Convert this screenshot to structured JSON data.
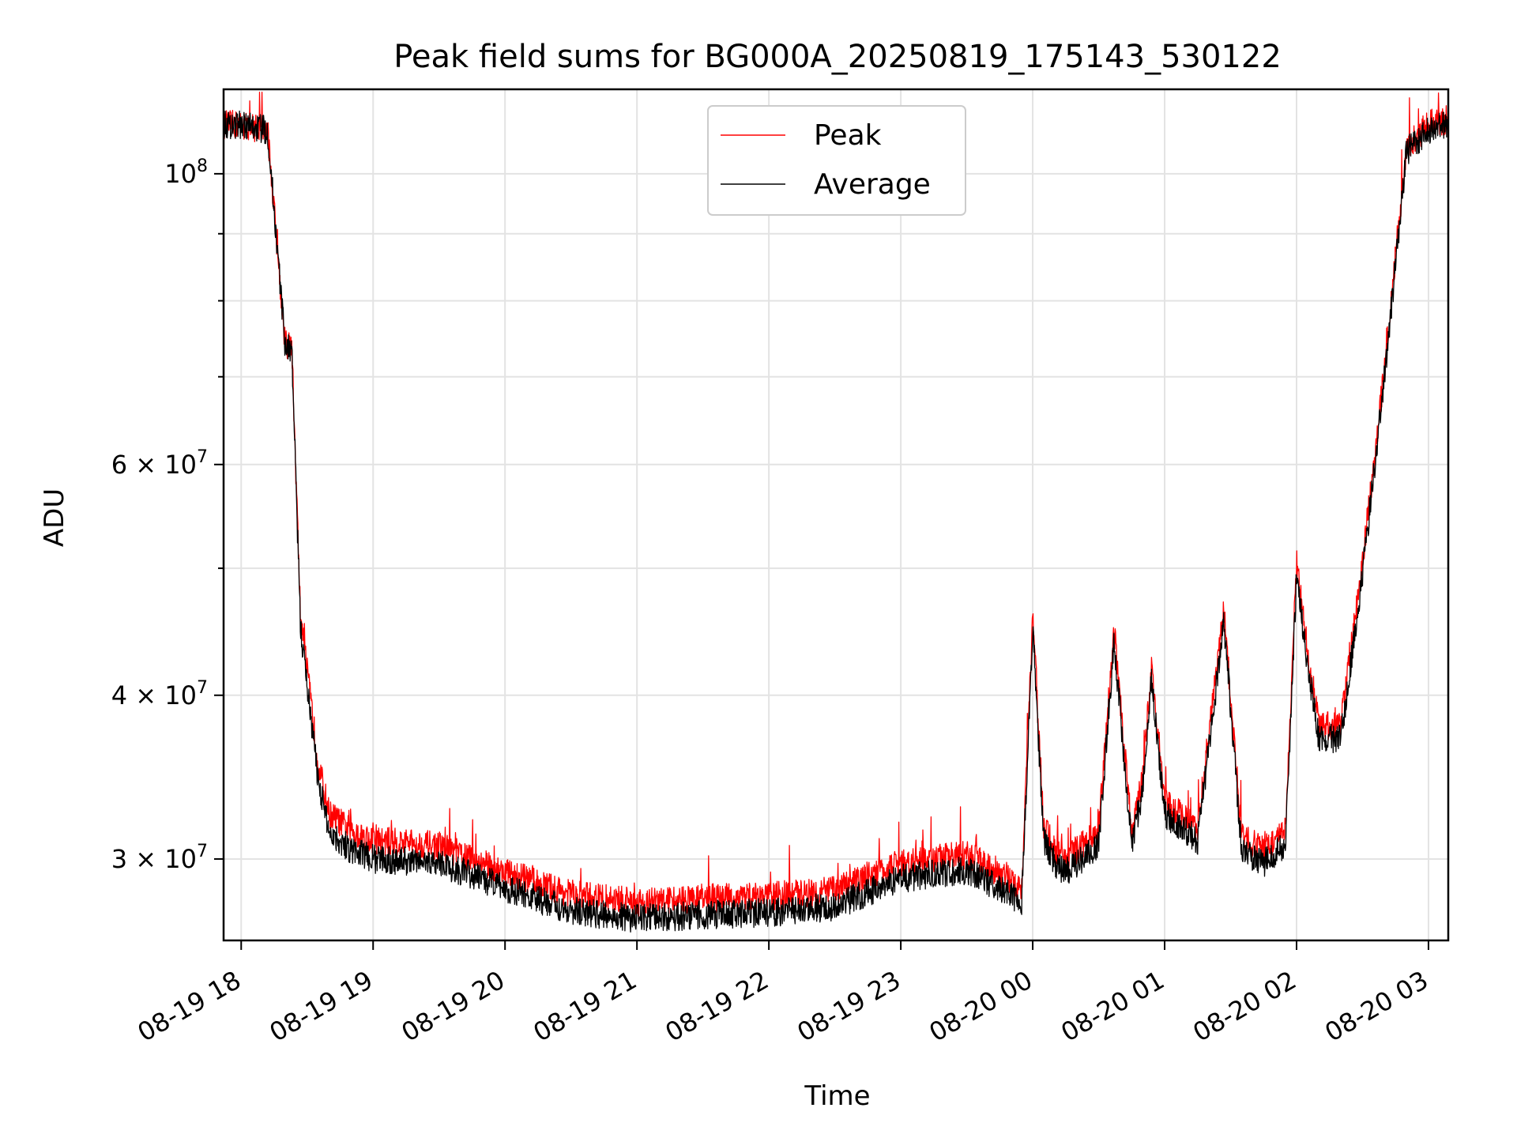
{
  "chart_data": {
    "type": "line",
    "title": "Peak field sums for BG000A_20250819_175143_530122",
    "xlabel": "Time",
    "ylabel": "ADU",
    "yscale": "log",
    "grid": true,
    "legend_position": "top-center",
    "x_tick_labels": [
      "08-19 18",
      "08-19 19",
      "08-19 20",
      "08-19 21",
      "08-19 22",
      "08-19 23",
      "08-20 00",
      "08-20 01",
      "08-20 02",
      "08-20 03"
    ],
    "x_ticks": [
      "2025-08-19T18:00",
      "2025-08-19T19:00",
      "2025-08-19T20:00",
      "2025-08-19T21:00",
      "2025-08-19T22:00",
      "2025-08-19T23:00",
      "2025-08-20T00:00",
      "2025-08-20T01:00",
      "2025-08-20T02:00",
      "2025-08-20T03:00"
    ],
    "xlim": [
      "2025-08-19T17:52",
      "2025-08-20T03:09"
    ],
    "ylim": [
      26000000,
      116000000
    ],
    "y_ticks": [
      {
        "value": 30000000,
        "mantissa": "3",
        "exponent": "7"
      },
      {
        "value": 40000000,
        "mantissa": "4",
        "exponent": "7"
      },
      {
        "value": 60000000,
        "mantissa": "6",
        "exponent": "7"
      },
      {
        "value": 100000000,
        "mantissa": "",
        "exponent": "8"
      }
    ],
    "y_minor_ticks": [
      50000000,
      70000000,
      80000000,
      90000000
    ],
    "series": [
      {
        "name": "Peak",
        "color": "#ff0000",
        "x": [
          "2025-08-19T17:52",
          "2025-08-19T18:00",
          "2025-08-19T18:12",
          "2025-08-19T18:20",
          "2025-08-19T18:23",
          "2025-08-19T18:27",
          "2025-08-19T18:35",
          "2025-08-19T18:40",
          "2025-08-19T18:50",
          "2025-08-19T19:00",
          "2025-08-19T19:30",
          "2025-08-19T20:00",
          "2025-08-19T20:30",
          "2025-08-19T21:00",
          "2025-08-19T21:30",
          "2025-08-19T22:00",
          "2025-08-19T22:30",
          "2025-08-19T23:00",
          "2025-08-19T23:30",
          "2025-08-19T23:45",
          "2025-08-19T23:55",
          "2025-08-20T00:00",
          "2025-08-20T00:05",
          "2025-08-20T00:10",
          "2025-08-20T00:15",
          "2025-08-20T00:30",
          "2025-08-20T00:37",
          "2025-08-20T00:45",
          "2025-08-20T00:50",
          "2025-08-20T00:54",
          "2025-08-20T01:00",
          "2025-08-20T01:15",
          "2025-08-20T01:27",
          "2025-08-20T01:35",
          "2025-08-20T01:45",
          "2025-08-20T01:55",
          "2025-08-20T02:00",
          "2025-08-20T02:04",
          "2025-08-20T02:10",
          "2025-08-20T02:20",
          "2025-08-20T02:30",
          "2025-08-20T02:40",
          "2025-08-20T02:50",
          "2025-08-20T03:00",
          "2025-08-20T03:09"
        ],
        "values": [
          109000000,
          109000000,
          108000000,
          74000000,
          74000000,
          46000000,
          35500000,
          32500000,
          31500000,
          31000000,
          30700000,
          29300000,
          28200000,
          27800000,
          28000000,
          28100000,
          28400000,
          29800000,
          30200000,
          29300000,
          28600000,
          46000000,
          31800000,
          30500000,
          30000000,
          31500000,
          45000000,
          31500000,
          34500000,
          42000000,
          33200000,
          31700000,
          46500000,
          31200000,
          30500000,
          31500000,
          50500000,
          44500000,
          38000000,
          37800000,
          50500000,
          71000000,
          105000000,
          109000000,
          110000000
        ]
      },
      {
        "name": "Average",
        "color": "#000000",
        "x": [
          "2025-08-19T17:52",
          "2025-08-19T18:00",
          "2025-08-19T18:12",
          "2025-08-19T18:20",
          "2025-08-19T18:23",
          "2025-08-19T18:27",
          "2025-08-19T18:35",
          "2025-08-19T18:40",
          "2025-08-19T18:50",
          "2025-08-19T19:00",
          "2025-08-19T19:30",
          "2025-08-19T20:00",
          "2025-08-19T20:30",
          "2025-08-19T21:00",
          "2025-08-19T21:30",
          "2025-08-19T22:00",
          "2025-08-19T22:30",
          "2025-08-19T23:00",
          "2025-08-19T23:30",
          "2025-08-19T23:45",
          "2025-08-19T23:55",
          "2025-08-20T00:00",
          "2025-08-20T00:05",
          "2025-08-20T00:10",
          "2025-08-20T00:15",
          "2025-08-20T00:30",
          "2025-08-20T00:37",
          "2025-08-20T00:45",
          "2025-08-20T00:50",
          "2025-08-20T00:54",
          "2025-08-20T01:00",
          "2025-08-20T01:15",
          "2025-08-20T01:27",
          "2025-08-20T01:35",
          "2025-08-20T01:45",
          "2025-08-20T01:55",
          "2025-08-20T02:00",
          "2025-08-20T02:04",
          "2025-08-20T02:10",
          "2025-08-20T02:20",
          "2025-08-20T02:30",
          "2025-08-20T02:40",
          "2025-08-20T02:50",
          "2025-08-20T03:00",
          "2025-08-20T03:09"
        ],
        "values": [
          109000000,
          109000000,
          108000000,
          74000000,
          73500000,
          45000000,
          34500000,
          31500000,
          30500000,
          30000000,
          29800000,
          28500000,
          27400000,
          27000000,
          27200000,
          27300000,
          27600000,
          29000000,
          29400000,
          28500000,
          27800000,
          45000000,
          31000000,
          29800000,
          29300000,
          30700000,
          44000000,
          30800000,
          33800000,
          41000000,
          32500000,
          31000000,
          45500000,
          30500000,
          29800000,
          30800000,
          49500000,
          43500000,
          37200000,
          37000000,
          49500000,
          70000000,
          104000000,
          108000000,
          109000000
        ]
      }
    ]
  }
}
